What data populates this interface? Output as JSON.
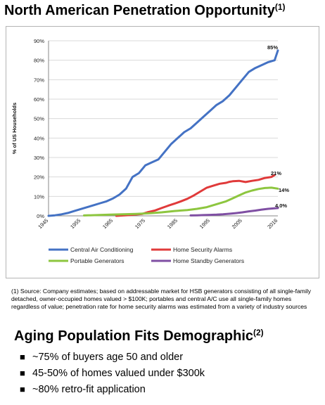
{
  "header": {
    "title": "North American Penetration Opportunity",
    "title_sup": "(1)"
  },
  "chart_data": {
    "type": "line",
    "ylabel": "% of US Households",
    "ylim": [
      0,
      90
    ],
    "yticks": [
      "0%",
      "10%",
      "20%",
      "30%",
      "40%",
      "50%",
      "60%",
      "70%",
      "80%",
      "90%"
    ],
    "xlim": [
      1945,
      2016
    ],
    "xticks": [
      "1945",
      "1955",
      "1965",
      "1975",
      "1985",
      "1995",
      "2005",
      "2016"
    ],
    "grid": "horizontal",
    "legend_position": "bottom",
    "series": [
      {
        "name": "Central Air Conditioning",
        "color": "#4472c4",
        "end_label": "85%",
        "x": [
          1945,
          1947,
          1949,
          1951,
          1953,
          1955,
          1957,
          1959,
          1961,
          1963,
          1965,
          1967,
          1969,
          1971,
          1973,
          1975,
          1977,
          1979,
          1981,
          1983,
          1985,
          1987,
          1989,
          1991,
          1993,
          1995,
          1997,
          1999,
          2001,
          2003,
          2005,
          2007,
          2009,
          2011,
          2013,
          2015,
          2016
        ],
        "y": [
          0,
          0.3,
          0.8,
          1.5,
          2.5,
          3.5,
          4.5,
          5.5,
          6.5,
          7.5,
          9,
          11,
          14,
          20,
          22,
          26,
          27.5,
          29,
          33,
          37,
          40,
          43,
          45,
          48,
          51,
          54,
          57,
          59,
          62,
          66,
          70,
          74,
          76,
          77.5,
          79,
          80,
          85
        ]
      },
      {
        "name": "Home Security Alarms",
        "color": "#e03a3a",
        "end_label": "21%",
        "x": [
          1966,
          1970,
          1974,
          1976,
          1978,
          1980,
          1982,
          1984,
          1986,
          1988,
          1990,
          1992,
          1994,
          1996,
          1998,
          2000,
          2001,
          2002,
          2004,
          2006,
          2008,
          2010,
          2012,
          2014,
          2015
        ],
        "y": [
          0,
          0.4,
          1,
          2,
          2.8,
          4,
          5.2,
          6.3,
          7.5,
          8.8,
          10.5,
          12.5,
          14.5,
          15.5,
          16.5,
          17,
          17.5,
          17.8,
          18,
          17.4,
          18,
          18.5,
          19.5,
          20,
          21
        ]
      },
      {
        "name": "Portable Generators",
        "color": "#8dc63f",
        "end_label": "14%",
        "x": [
          1956,
          1960,
          1964,
          1968,
          1972,
          1976,
          1980,
          1984,
          1988,
          1991,
          1994,
          1997,
          2000,
          2002,
          2004,
          2006,
          2008,
          2010,
          2012,
          2014,
          2016
        ],
        "y": [
          0.2,
          0.4,
          0.6,
          0.8,
          1,
          1.3,
          1.8,
          2.5,
          3,
          3.6,
          4.5,
          6,
          7.5,
          9,
          10.5,
          12,
          13,
          13.8,
          14.3,
          14.5,
          14
        ]
      },
      {
        "name": "Home Standby Generators",
        "color": "#7f4fa3",
        "end_label": "4.0%",
        "x": [
          1989,
          1991,
          1993,
          1995,
          1997,
          1999,
          2001,
          2003,
          2005,
          2007,
          2009,
          2011,
          2013,
          2015,
          2016
        ],
        "y": [
          0.2,
          0.3,
          0.4,
          0.5,
          0.6,
          0.8,
          1.1,
          1.4,
          1.8,
          2.3,
          2.7,
          3.2,
          3.6,
          3.9,
          4
        ]
      }
    ]
  },
  "footnote": "(1) Source: Company estimates; based on addressable market for HSB generators consisting of all single-family detached, owner-occupied homes valued > $100K; portables and central A/C use all single-family homes regardless of value; penetration rate for home security alarms was estimated from a variety of industry sources",
  "section2": {
    "title": "Aging Population Fits Demographic",
    "title_sup": "(2)",
    "bullet_glyph": "■",
    "bullets": [
      "~75% of buyers age 50 and older",
      "45-50% of homes valued under $300k",
      "~80% retro-fit application"
    ]
  }
}
